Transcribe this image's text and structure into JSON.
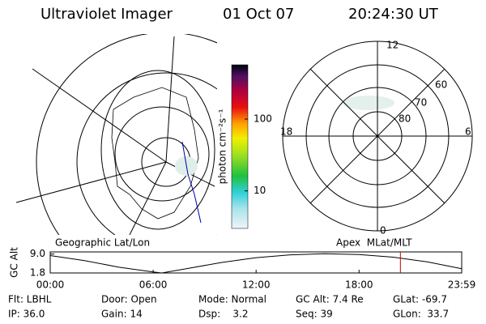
{
  "header": {
    "title": "Ultraviolet Imager",
    "date": "01 Oct 07",
    "time": "20:24:30 UT"
  },
  "colorbar": {
    "label": "photon cm⁻²s⁻¹",
    "scale": "log",
    "lim": [
      3,
      570
    ],
    "ticks": [
      10,
      100
    ]
  },
  "polar": {
    "hour_labels": [
      "12",
      "18",
      "6",
      "0"
    ],
    "lat_labels": [
      "60",
      "70",
      "80"
    ]
  },
  "chart_data": {
    "type": "line",
    "ylabel": "GC Alt",
    "left_label": "Geographic Lat/Lon",
    "right_label": "Apex  MLat/MLT",
    "x": [
      0,
      2,
      4,
      6,
      6.5,
      8,
      10,
      12,
      14,
      16,
      18,
      20,
      22,
      23.983
    ],
    "values": [
      8.4,
      6.5,
      4.0,
      2.2,
      1.8,
      3.5,
      5.8,
      7.6,
      8.7,
      9.1,
      8.8,
      7.8,
      6.0,
      3.4
    ],
    "color": "#000000",
    "xlim": [
      0,
      23.983
    ],
    "ylim": [
      1.8,
      9.8
    ],
    "xticks": [
      {
        "value": 0,
        "label": "00:00"
      },
      {
        "value": 6,
        "label": "06:00"
      },
      {
        "value": 12,
        "label": "12:00"
      },
      {
        "value": 18,
        "label": "18:00"
      },
      {
        "value": 23.983,
        "label": "23:59"
      }
    ],
    "yticks": [
      1.8,
      {
        "value": 9,
        "label": "9.0"
      }
    ],
    "marker_x": 20.41,
    "marker_color": "#cc0000"
  },
  "info": [
    [
      "Flt: LBHL",
      "IP: 36.0"
    ],
    [
      "Door: Open",
      "Gain: 14"
    ],
    [
      "Mode: Normal",
      "Dsp:    3.2"
    ],
    [
      "GC Alt: 7.4 Re",
      "Seq: 39"
    ],
    [
      "GLat: -69.7",
      "GLon:  33.7"
    ]
  ]
}
